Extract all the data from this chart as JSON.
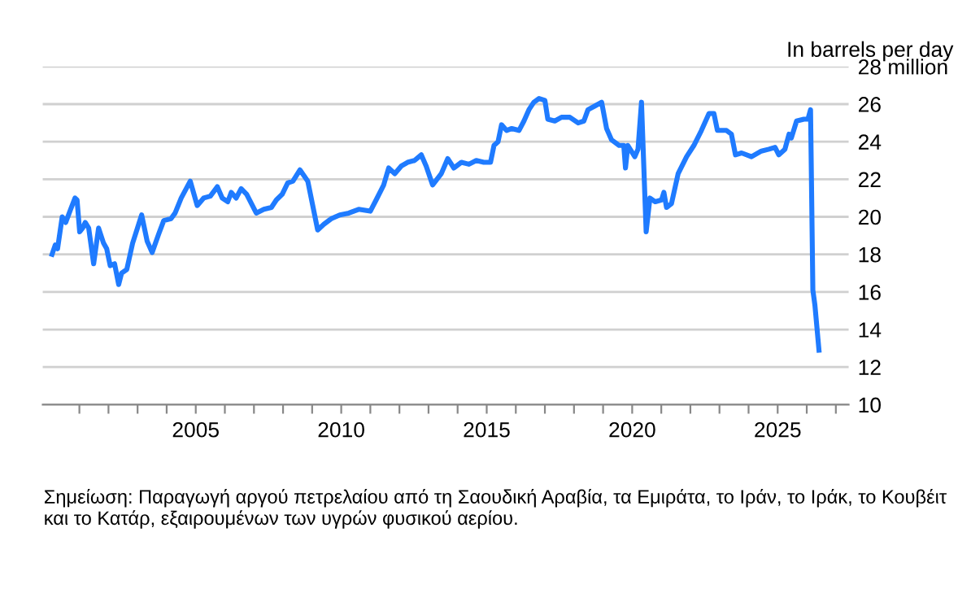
{
  "chart_data": {
    "type": "line",
    "ylabel": "In barrels per day",
    "annotations": [
      "Σημείωση: Παραγωγή αργού πετρελαίου από τη Σαουδική Αραβία, τα Εμιράτα, το Ιράν, το Ιράκ, το Κουβέιτ και το Κατάρ, εξαιρουμένων των υγρών φυσικού αερίου."
    ],
    "xlim": [
      1999.74,
      2027.44
    ],
    "xticks": [
      {
        "value": 2001,
        "label": null
      },
      {
        "value": 2002,
        "label": null
      },
      {
        "value": 2003,
        "label": null
      },
      {
        "value": 2004,
        "label": null
      },
      {
        "value": 2005,
        "label": "2005"
      },
      {
        "value": 2006,
        "label": null
      },
      {
        "value": 2007,
        "label": null
      },
      {
        "value": 2008,
        "label": null
      },
      {
        "value": 2009,
        "label": null
      },
      {
        "value": 2010,
        "label": "2010"
      },
      {
        "value": 2011,
        "label": null
      },
      {
        "value": 2012,
        "label": null
      },
      {
        "value": 2013,
        "label": null
      },
      {
        "value": 2014,
        "label": null
      },
      {
        "value": 2015,
        "label": "2015"
      },
      {
        "value": 2016,
        "label": null
      },
      {
        "value": 2017,
        "label": null
      },
      {
        "value": 2018,
        "label": null
      },
      {
        "value": 2019,
        "label": null
      },
      {
        "value": 2020,
        "label": "2020"
      },
      {
        "value": 2021,
        "label": null
      },
      {
        "value": 2022,
        "label": null
      },
      {
        "value": 2023,
        "label": null
      },
      {
        "value": 2024,
        "label": null
      },
      {
        "value": 2025,
        "label": "2025"
      },
      {
        "value": 2026,
        "label": null
      },
      {
        "value": 2027,
        "label": null
      }
    ],
    "ylim": [
      10,
      28
    ],
    "yticks": [
      10,
      12,
      14,
      16,
      18,
      20,
      22,
      24,
      26,
      {
        "value": 28,
        "label": "28 million"
      }
    ],
    "grid": "y",
    "marker": "none",
    "line_style": "solid",
    "series": [
      {
        "color": "#1f7bff",
        "x": [
          2000.06,
          2000.17,
          2000.25,
          2000.41,
          2000.53,
          2000.7,
          2000.85,
          2000.92,
          2001.01,
          2001.11,
          2001.2,
          2001.32,
          2001.49,
          2001.66,
          2001.83,
          2001.94,
          2002.06,
          2002.21,
          2002.35,
          2002.45,
          2002.63,
          2002.83,
          2003.14,
          2003.33,
          2003.5,
          2003.73,
          2003.9,
          2004.15,
          2004.29,
          2004.5,
          2004.81,
          2005.05,
          2005.27,
          2005.5,
          2005.74,
          2005.91,
          2006.1,
          2006.22,
          2006.39,
          2006.56,
          2006.75,
          2007.08,
          2007.34,
          2007.6,
          2007.77,
          2007.97,
          2008.16,
          2008.34,
          2008.58,
          2008.85,
          2009.02,
          2009.19,
          2009.4,
          2009.66,
          2009.95,
          2010.26,
          2010.6,
          2011.0,
          2011.2,
          2011.46,
          2011.63,
          2011.84,
          2012.06,
          2012.28,
          2012.52,
          2012.75,
          2012.92,
          2013.14,
          2013.44,
          2013.66,
          2013.87,
          2014.13,
          2014.39,
          2014.64,
          2014.9,
          2015.13,
          2015.25,
          2015.39,
          2015.51,
          2015.68,
          2015.86,
          2016.11,
          2016.28,
          2016.45,
          2016.62,
          2016.8,
          2017.0,
          2017.1,
          2017.34,
          2017.57,
          2017.86,
          2018.14,
          2018.34,
          2018.48,
          2018.72,
          2018.95,
          2019.12,
          2019.29,
          2019.55,
          2019.71,
          2019.77,
          2019.85,
          2020.09,
          2020.2,
          2020.32,
          2020.48,
          2020.61,
          2020.79,
          2021.01,
          2021.09,
          2021.18,
          2021.35,
          2021.58,
          2021.87,
          2022.12,
          2022.38,
          2022.64,
          2022.81,
          2022.93,
          2023.24,
          2023.41,
          2023.55,
          2023.76,
          2024.1,
          2024.44,
          2024.7,
          2024.91,
          2025.04,
          2025.25,
          2025.39,
          2025.47,
          2025.65,
          2025.9,
          2026.04,
          2026.13,
          2026.21,
          2026.28,
          2026.42
        ],
        "values": [
          18.0,
          18.5,
          18.3,
          20.0,
          19.7,
          20.4,
          21.0,
          20.9,
          19.2,
          19.4,
          19.7,
          19.4,
          17.5,
          19.4,
          18.6,
          18.3,
          17.4,
          17.5,
          16.4,
          17.0,
          17.2,
          18.6,
          20.1,
          18.7,
          18.1,
          19.1,
          19.8,
          19.9,
          20.2,
          21.0,
          21.9,
          20.6,
          21.0,
          21.1,
          21.6,
          21.0,
          20.8,
          21.3,
          21.0,
          21.5,
          21.2,
          20.2,
          20.4,
          20.5,
          20.9,
          21.2,
          21.8,
          21.9,
          22.5,
          21.9,
          20.6,
          19.3,
          19.6,
          19.9,
          20.1,
          20.2,
          20.4,
          20.3,
          20.9,
          21.7,
          22.6,
          22.3,
          22.7,
          22.9,
          23.0,
          23.3,
          22.7,
          21.7,
          22.3,
          23.1,
          22.6,
          22.9,
          22.8,
          23.0,
          22.9,
          22.9,
          23.8,
          24.0,
          24.9,
          24.6,
          24.7,
          24.6,
          25.1,
          25.7,
          26.1,
          26.3,
          26.2,
          25.2,
          25.1,
          25.3,
          25.3,
          25.0,
          25.1,
          25.7,
          25.9,
          26.1,
          24.7,
          24.1,
          23.8,
          23.8,
          22.6,
          23.8,
          23.2,
          23.6,
          26.1,
          19.2,
          21.0,
          20.8,
          20.9,
          21.3,
          20.5,
          20.7,
          22.3,
          23.2,
          23.8,
          24.6,
          25.5,
          25.5,
          24.6,
          24.6,
          24.4,
          23.3,
          23.4,
          23.2,
          23.5,
          23.6,
          23.7,
          23.3,
          23.6,
          24.4,
          24.2,
          25.1,
          25.2,
          25.2,
          25.7,
          16.1,
          15.3,
          12.9
        ]
      }
    ]
  }
}
